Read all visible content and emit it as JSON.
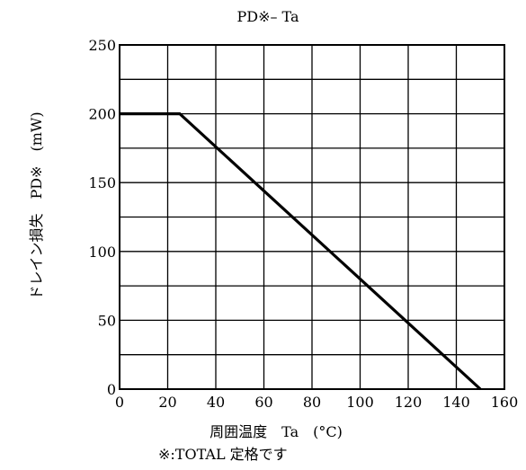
{
  "chart_data": {
    "type": "line",
    "title": "PD※– Ta",
    "xlabel": "周囲温度　Ta　(°C)",
    "ylabel": "ドレイン損失　PD※　(mW)",
    "footnote": "※:TOTAL 定格です",
    "xlim": [
      0,
      160
    ],
    "ylim": [
      0,
      250
    ],
    "x_ticks": [
      0,
      20,
      40,
      60,
      80,
      100,
      120,
      140,
      160
    ],
    "y_ticks": [
      0,
      50,
      100,
      150,
      200,
      250
    ],
    "x_grid": [
      0,
      20,
      40,
      60,
      80,
      100,
      120,
      140,
      160
    ],
    "y_grid": [
      0,
      25,
      50,
      75,
      100,
      125,
      150,
      175,
      200,
      225,
      250
    ],
    "grid": true,
    "series": [
      {
        "x": [
          0,
          25,
          150
        ],
        "y": [
          200,
          200,
          0
        ]
      }
    ]
  },
  "colors": {
    "line": "#000000",
    "grid": "#000000",
    "background": "#ffffff"
  }
}
